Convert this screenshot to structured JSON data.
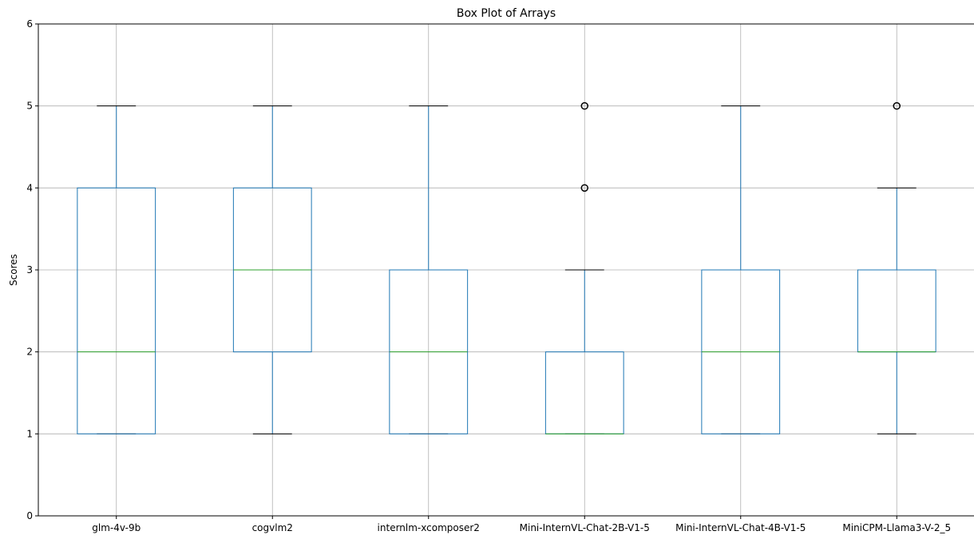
{
  "chart_data": {
    "type": "box",
    "title": "Box Plot of Arrays",
    "xlabel": "",
    "ylabel": "Scores",
    "ylim": [
      0,
      6
    ],
    "yticks": [
      0,
      1,
      2,
      3,
      4,
      5,
      6
    ],
    "grid": true,
    "colors": {
      "box": "#1f77b4",
      "median": "#2ca02c",
      "cap": "#000000",
      "grid": "#b0b0b0",
      "outlier": "#000000"
    },
    "categories": [
      "glm-4v-9b",
      "cogvlm2",
      "internlm-xcomposer2",
      "Mini-InternVL-Chat-2B-V1-5",
      "Mini-InternVL-Chat-4B-V1-5",
      "MiniCPM-Llama3-V-2_5"
    ],
    "boxes": [
      {
        "min": 1,
        "q1": 1,
        "median": 2,
        "q3": 4,
        "max": 5,
        "outliers": []
      },
      {
        "min": 1,
        "q1": 2,
        "median": 3,
        "q3": 4,
        "max": 5,
        "outliers": []
      },
      {
        "min": 1,
        "q1": 1,
        "median": 2,
        "q3": 3,
        "max": 5,
        "outliers": []
      },
      {
        "min": 1,
        "q1": 1,
        "median": 1,
        "q3": 2,
        "max": 3,
        "outliers": [
          4,
          5
        ]
      },
      {
        "min": 1,
        "q1": 1,
        "median": 2,
        "q3": 3,
        "max": 5,
        "outliers": []
      },
      {
        "min": 1,
        "q1": 2,
        "median": 2,
        "q3": 3,
        "max": 4,
        "outliers": [
          5
        ]
      }
    ]
  }
}
